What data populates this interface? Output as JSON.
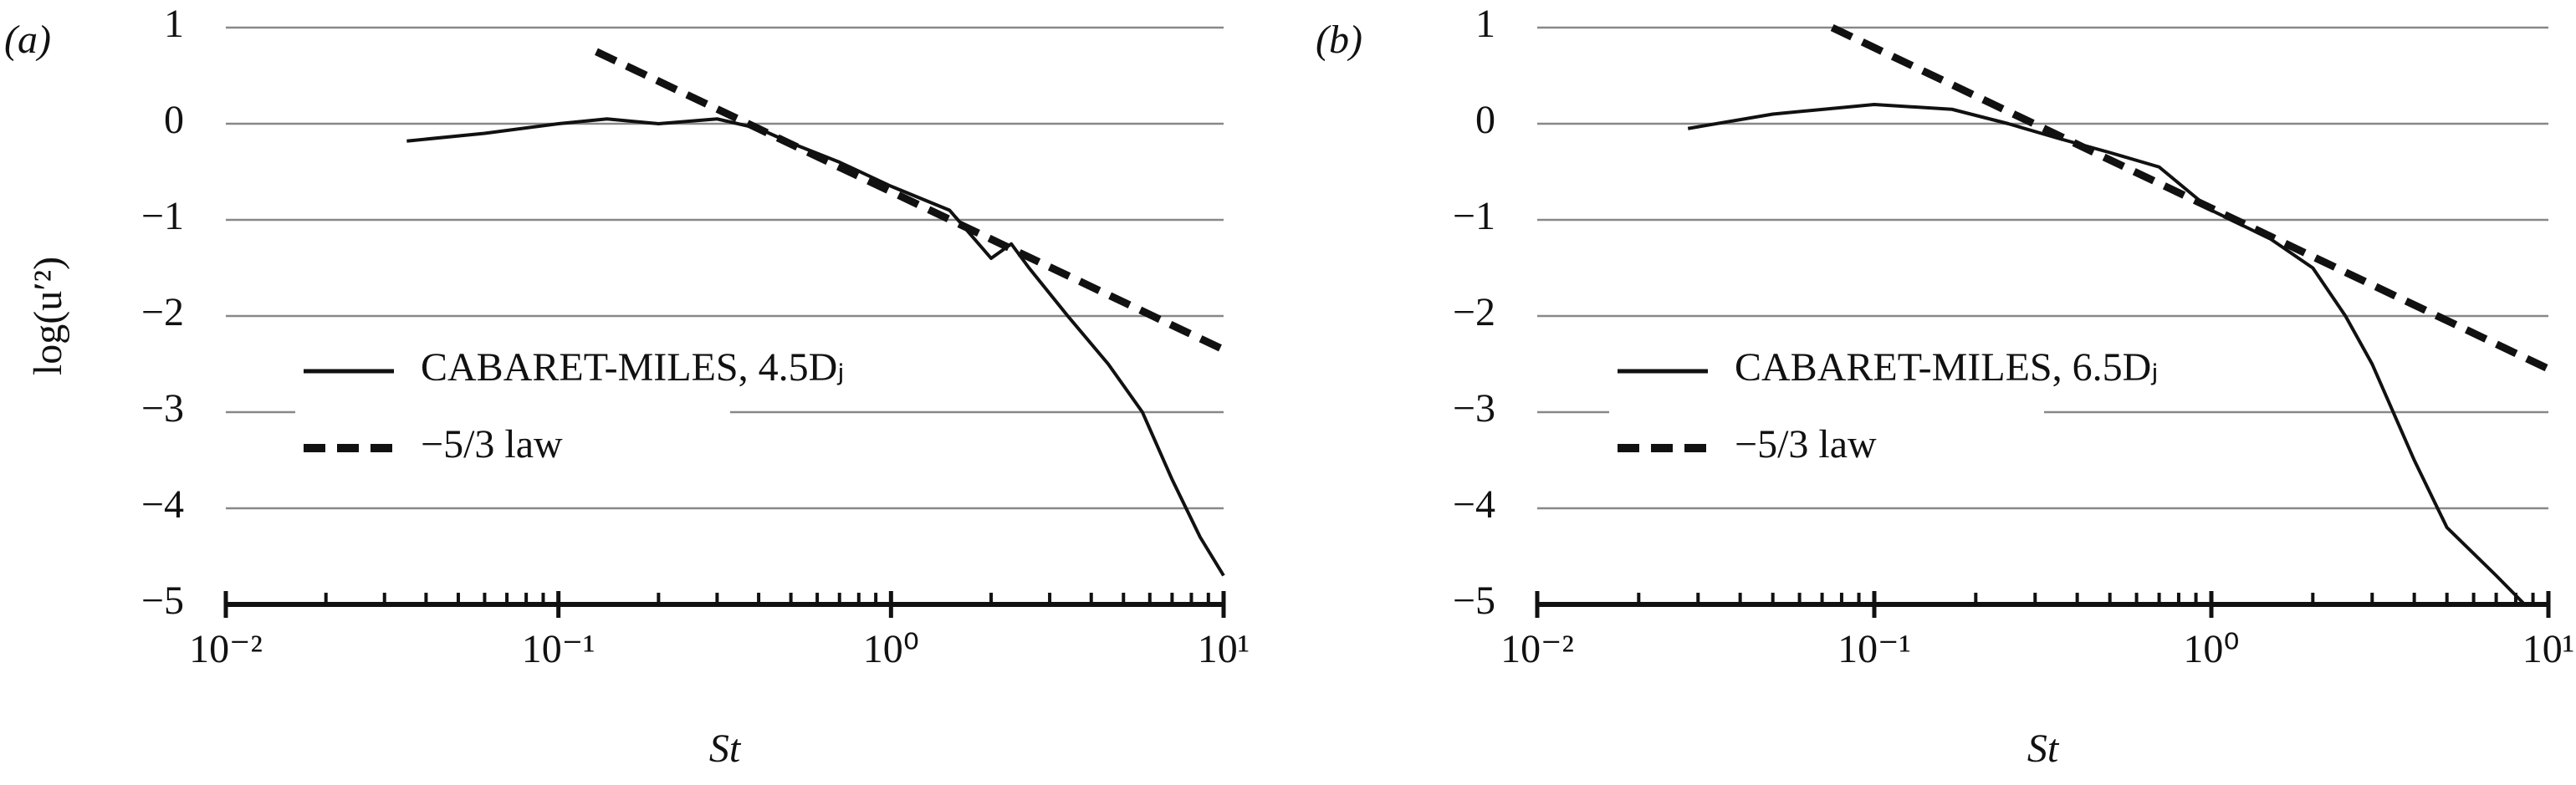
{
  "chart_data": [
    {
      "type": "line",
      "panel": "(a)",
      "ylabel": "log(u′²)",
      "xlabel": "St",
      "xscale": "log",
      "grid": true,
      "legend": "left",
      "xlim": [
        0.01,
        10
      ],
      "ylim": [
        -5,
        1
      ],
      "xticks": [
        {
          "value": 0.01,
          "label": "10⁻²"
        },
        {
          "value": 0.1,
          "label": "10⁻¹"
        },
        {
          "value": 1,
          "label": "10⁰"
        },
        {
          "value": 10,
          "label": "10¹"
        }
      ],
      "yticks": [
        {
          "value": -5,
          "label": "−5"
        },
        {
          "value": -4,
          "label": "−4"
        },
        {
          "value": -3,
          "label": "−3"
        },
        {
          "value": -2,
          "label": "−2"
        },
        {
          "value": -1,
          "label": "−1"
        },
        0,
        1
      ],
      "series": [
        {
          "name": "CABARET-MILES, 4.5Dⱼ",
          "color": "#111111",
          "style": "solid",
          "x": [
            0.035,
            0.06,
            0.1,
            0.14,
            0.2,
            0.3,
            0.4,
            0.5,
            0.7,
            1.0,
            1.5,
            2.0,
            2.3,
            2.6,
            3.4,
            4.5,
            5.7,
            7,
            8.5,
            10
          ],
          "values": [
            -0.18,
            -0.1,
            0.0,
            0.05,
            0.0,
            0.05,
            -0.05,
            -0.2,
            -0.4,
            -0.65,
            -0.9,
            -1.4,
            -1.25,
            -1.5,
            -2.0,
            -2.5,
            -3.0,
            -3.7,
            -4.3,
            -4.7
          ]
        },
        {
          "name": "−5/3 law",
          "color": "#111111",
          "style": "dashed",
          "x": [
            0.13,
            10
          ],
          "values": [
            0.75,
            -2.35
          ]
        }
      ]
    },
    {
      "type": "line",
      "panel": "(b)",
      "xlabel": "St",
      "xscale": "log",
      "grid": true,
      "legend": "left",
      "xlim": [
        0.01,
        10
      ],
      "ylim": [
        -5,
        1
      ],
      "xticks": [
        {
          "value": 0.01,
          "label": "10⁻²"
        },
        {
          "value": 0.1,
          "label": "10⁻¹"
        },
        {
          "value": 1,
          "label": "10⁰"
        },
        {
          "value": 10,
          "label": "10¹"
        }
      ],
      "yticks": [
        {
          "value": -5,
          "label": "−5"
        },
        {
          "value": -4,
          "label": "−4"
        },
        {
          "value": -3,
          "label": "−3"
        },
        {
          "value": -2,
          "label": "−2"
        },
        {
          "value": -1,
          "label": "−1"
        },
        0,
        1
      ],
      "series": [
        {
          "name": "CABARET-MILES, 6.5Dⱼ",
          "color": "#111111",
          "style": "solid",
          "x": [
            0.028,
            0.05,
            0.1,
            0.17,
            0.25,
            0.35,
            0.5,
            0.7,
            1.0,
            1.5,
            2.0,
            2.5,
            3,
            4,
            5,
            7,
            8.5
          ],
          "values": [
            -0.05,
            0.1,
            0.2,
            0.15,
            0.0,
            -0.15,
            -0.3,
            -0.45,
            -0.9,
            -1.2,
            -1.5,
            -2.0,
            -2.5,
            -3.5,
            -4.2,
            -4.7,
            -5.0
          ]
        },
        {
          "name": "−5/3 law",
          "color": "#111111",
          "style": "dashed",
          "x": [
            0.075,
            10
          ],
          "values": [
            1.0,
            -2.55
          ]
        }
      ]
    }
  ]
}
